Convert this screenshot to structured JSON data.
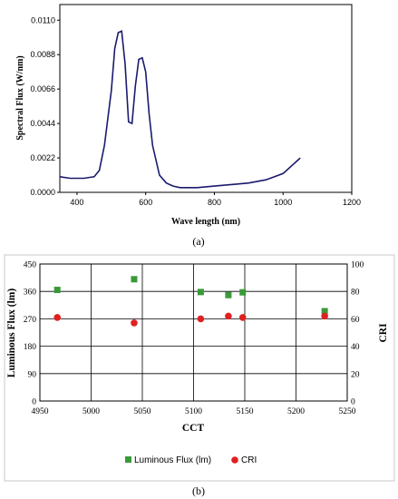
{
  "chart_data": [
    {
      "type": "line",
      "panel_label": "(a)",
      "xlabel": "Wave length (nm)",
      "ylabel": "Spectral Flux (W/nm)",
      "xlim": [
        350,
        1200
      ],
      "ylim": [
        0,
        0.012
      ],
      "x_ticks": [
        "400",
        "600",
        "800",
        "1000",
        "1200"
      ],
      "y_ticks": [
        "0.0000",
        "0.0022",
        "0.0044",
        "0.0066",
        "0.0088",
        "0.0110"
      ],
      "line_color": "#1a1a6e",
      "series": [
        {
          "x": [
            350,
            380,
            420,
            450,
            465,
            480,
            500,
            510,
            520,
            530,
            540,
            550,
            560,
            570,
            580,
            590,
            600,
            610,
            620,
            640,
            660,
            680,
            700,
            750,
            800,
            850,
            900,
            950,
            1000,
            1050
          ],
          "y": [
            0.001,
            0.0009,
            0.0009,
            0.001,
            0.0014,
            0.003,
            0.0065,
            0.0092,
            0.0102,
            0.0103,
            0.0082,
            0.0045,
            0.0044,
            0.0068,
            0.0085,
            0.0086,
            0.0077,
            0.005,
            0.003,
            0.0011,
            0.0006,
            0.0004,
            0.0003,
            0.0003,
            0.0004,
            0.0005,
            0.0006,
            0.0008,
            0.0012,
            0.0022
          ]
        }
      ]
    },
    {
      "type": "scatter",
      "panel_label": "(b)",
      "xlabel": "CCT",
      "ylabel": "Luminous Flux (lm)",
      "y2label": "CRI",
      "xlim": [
        4950,
        5250
      ],
      "ylim": [
        0,
        450
      ],
      "y2lim": [
        0,
        100
      ],
      "x_ticks": [
        "4950",
        "5000",
        "5050",
        "5100",
        "5150",
        "5200",
        "5250"
      ],
      "y_ticks": [
        "0",
        "90",
        "180",
        "270",
        "360",
        "450"
      ],
      "y2_ticks": [
        "0",
        "20",
        "40",
        "60",
        "80",
        "100"
      ],
      "grid": true,
      "legend_position": "bottom",
      "series": [
        {
          "name": "Luminous Flux (lm)",
          "color": "#3a9a3a",
          "marker": "square",
          "axis": "left",
          "x": [
            4967,
            5042,
            5107,
            5134,
            5148,
            5228
          ],
          "y": [
            365,
            400,
            358,
            348,
            357,
            295
          ]
        },
        {
          "name": "CRI",
          "color": "#e02020",
          "marker": "circle",
          "axis": "right",
          "x": [
            4967,
            5042,
            5107,
            5134,
            5148,
            5228
          ],
          "y": [
            61,
            57,
            60,
            62,
            61,
            62
          ]
        }
      ]
    }
  ]
}
